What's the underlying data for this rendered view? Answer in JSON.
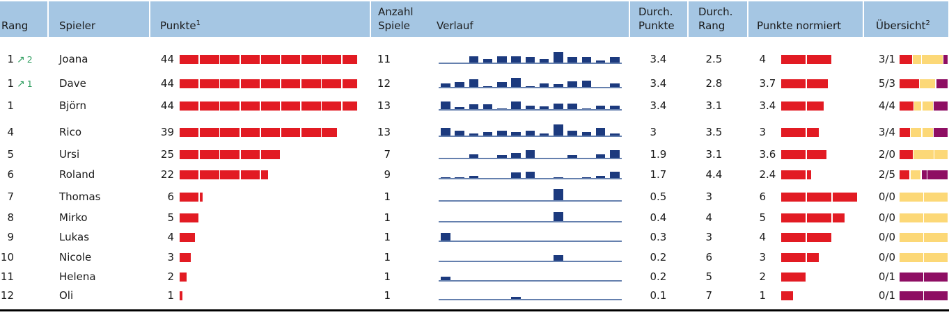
{
  "colors": {
    "header_bg": "#a5c6e3",
    "text": "#1a1a1a",
    "red": "#e21b23",
    "navy": "#1c3a7e",
    "baseline": "#6580ae",
    "yellow": "#fcd877",
    "purple": "#8e0e63",
    "green": "#2f9e5f",
    "rule": "#000000"
  },
  "header": {
    "rang": "Rang",
    "spieler": "Spieler",
    "punkte": "Punkte",
    "punkte_sup": "1",
    "anzahl_line1": "Anzahl",
    "anzahl_line2": "Spiele",
    "verlauf": "Verlauf",
    "durch_punkte_line1": "Durch.",
    "durch_punkte_line2": "Punkte",
    "durch_rang_line1": "Durch.",
    "durch_rang_line2": "Rang",
    "punkte_normiert": "Punkte normiert",
    "uebersicht": "Übersicht",
    "uebersicht_sup": "2"
  },
  "rows": [
    {
      "rang": "1",
      "delta": "2",
      "spieler": "Joana",
      "punkte": 44,
      "spiele": "11",
      "verlauf": [
        0,
        0,
        3.5,
        2,
        3.5,
        3.5,
        3,
        2,
        5.5,
        3,
        3,
        1,
        3
      ],
      "durch_punkte": "3.4",
      "durch_rang": "2.5",
      "punkte_normiert": "4",
      "uebersicht": "3/1",
      "uebersicht_segments": [
        [
          "red",
          3
        ],
        [
          "yellow",
          2
        ],
        [
          "yellow",
          5
        ],
        [
          "purple",
          1
        ]
      ]
    },
    {
      "rang": "1",
      "delta": "1",
      "spieler": "Dave",
      "punkte": 44,
      "spiele": "12",
      "verlauf": [
        2,
        2.5,
        4,
        0.5,
        2.5,
        5,
        0.5,
        2,
        1.5,
        3,
        3.5,
        0,
        2
      ],
      "durch_punkte": "3.4",
      "durch_rang": "2.8",
      "punkte_normiert": "3.7",
      "uebersicht": "5/3",
      "uebersicht_segments": [
        [
          "red",
          5
        ],
        [
          "yellow",
          4
        ],
        [
          "purple",
          3
        ]
      ]
    },
    {
      "rang": "1",
      "delta": null,
      "spieler": "Björn",
      "punkte": 44,
      "spiele": "13",
      "verlauf": [
        4,
        1,
        2.5,
        2.5,
        0.5,
        4,
        2,
        1.5,
        3,
        3,
        0.5,
        2,
        2
      ],
      "durch_punkte": "3.4",
      "durch_rang": "3.1",
      "punkte_normiert": "3.4",
      "uebersicht": "4/4",
      "uebersicht_segments": [
        [
          "red",
          4
        ],
        [
          "yellow",
          2
        ],
        [
          "yellow",
          3
        ],
        [
          "purple",
          4
        ]
      ]
    },
    {
      "rang": "4",
      "delta": null,
      "spieler": "Rico",
      "punkte": 39,
      "spiele": "13",
      "verlauf": [
        4,
        2.5,
        1,
        2,
        2.5,
        2,
        2.5,
        1,
        6,
        2.5,
        2,
        4,
        1
      ],
      "durch_punkte": "3",
      "durch_rang": "3.5",
      "punkte_normiert": "3",
      "uebersicht": "3/4",
      "uebersicht_segments": [
        [
          "red",
          3
        ],
        [
          "yellow",
          3
        ],
        [
          "yellow",
          3
        ],
        [
          "purple",
          4
        ]
      ]
    },
    {
      "rang": "5",
      "delta": null,
      "spieler": "Ursi",
      "punkte": 25,
      "spiele": "7",
      "verlauf": [
        0,
        0,
        2,
        0,
        1.5,
        2.5,
        4,
        0,
        0,
        1.5,
        0,
        2,
        4
      ],
      "durch_punkte": "1.9",
      "durch_rang": "3.1",
      "punkte_normiert": "3.6",
      "uebersicht": "2/0",
      "uebersicht_segments": [
        [
          "red",
          2
        ],
        [
          "yellow",
          3
        ],
        [
          "yellow",
          2
        ]
      ]
    },
    {
      "rang": "6",
      "delta": null,
      "spieler": "Roland",
      "punkte": 22,
      "spiele": "9",
      "verlauf": [
        0.5,
        0.5,
        1,
        0,
        0,
        3,
        3.5,
        0,
        0.5,
        0,
        0.5,
        1,
        3.5
      ],
      "durch_punkte": "1.7",
      "durch_rang": "4.4",
      "punkte_normiert": "2.4",
      "uebersicht": "2/5",
      "uebersicht_segments": [
        [
          "red",
          2
        ],
        [
          "yellow",
          2
        ],
        [
          "purple",
          1
        ],
        [
          "purple",
          4
        ]
      ]
    },
    {
      "rang": "7",
      "delta": null,
      "spieler": "Thomas",
      "punkte": 6,
      "spiele": "1",
      "verlauf": [
        0,
        0,
        0,
        0,
        0,
        0,
        0,
        0,
        6,
        0,
        0,
        0,
        0
      ],
      "durch_punkte": "0.5",
      "durch_rang": "3",
      "punkte_normiert": "6",
      "uebersicht": "0/0",
      "uebersicht_segments": [
        [
          "yellow",
          1
        ],
        [
          "yellow",
          1
        ]
      ]
    },
    {
      "rang": "8",
      "delta": null,
      "spieler": "Mirko",
      "punkte": 5,
      "spiele": "1",
      "verlauf": [
        0,
        0,
        0,
        0,
        0,
        0,
        0,
        0,
        5,
        0,
        0,
        0,
        0
      ],
      "durch_punkte": "0.4",
      "durch_rang": "4",
      "punkte_normiert": "5",
      "uebersicht": "0/0",
      "uebersicht_segments": [
        [
          "yellow",
          1
        ],
        [
          "yellow",
          1
        ]
      ]
    },
    {
      "rang": "9",
      "delta": null,
      "spieler": "Lukas",
      "punkte": 4,
      "spiele": "1",
      "verlauf": [
        4,
        0,
        0,
        0,
        0,
        0,
        0,
        0,
        0,
        0,
        0,
        0,
        0
      ],
      "durch_punkte": "0.3",
      "durch_rang": "3",
      "punkte_normiert": "4",
      "uebersicht": "0/0",
      "uebersicht_segments": [
        [
          "yellow",
          1
        ],
        [
          "yellow",
          1
        ]
      ]
    },
    {
      "rang": "10",
      "delta": null,
      "spieler": "Nicole",
      "punkte": 3,
      "spiele": "1",
      "verlauf": [
        0,
        0,
        0,
        0,
        0,
        0,
        0,
        0,
        3,
        0,
        0,
        0,
        0
      ],
      "durch_punkte": "0.2",
      "durch_rang": "6",
      "punkte_normiert": "3",
      "uebersicht": "0/0",
      "uebersicht_segments": [
        [
          "yellow",
          1
        ],
        [
          "yellow",
          1
        ]
      ]
    },
    {
      "rang": "11",
      "delta": null,
      "spieler": "Helena",
      "punkte": 2,
      "spiele": "1",
      "verlauf": [
        2,
        0,
        0,
        0,
        0,
        0,
        0,
        0,
        0,
        0,
        0,
        0,
        0
      ],
      "durch_punkte": "0.2",
      "durch_rang": "5",
      "punkte_normiert": "2",
      "uebersicht": "0/1",
      "uebersicht_segments": [
        [
          "purple",
          1
        ],
        [
          "purple",
          1
        ]
      ]
    },
    {
      "rang": "12",
      "delta": null,
      "spieler": "Oli",
      "punkte": 1,
      "spiele": "1",
      "verlauf": [
        0,
        0,
        0,
        0,
        0,
        1,
        0,
        0,
        0,
        0,
        0,
        0,
        0
      ],
      "durch_punkte": "0.1",
      "durch_rang": "7",
      "punkte_normiert": "1",
      "uebersicht": "0/1",
      "uebersicht_segments": [
        [
          "purple",
          1
        ],
        [
          "purple",
          1
        ]
      ]
    }
  ]
}
